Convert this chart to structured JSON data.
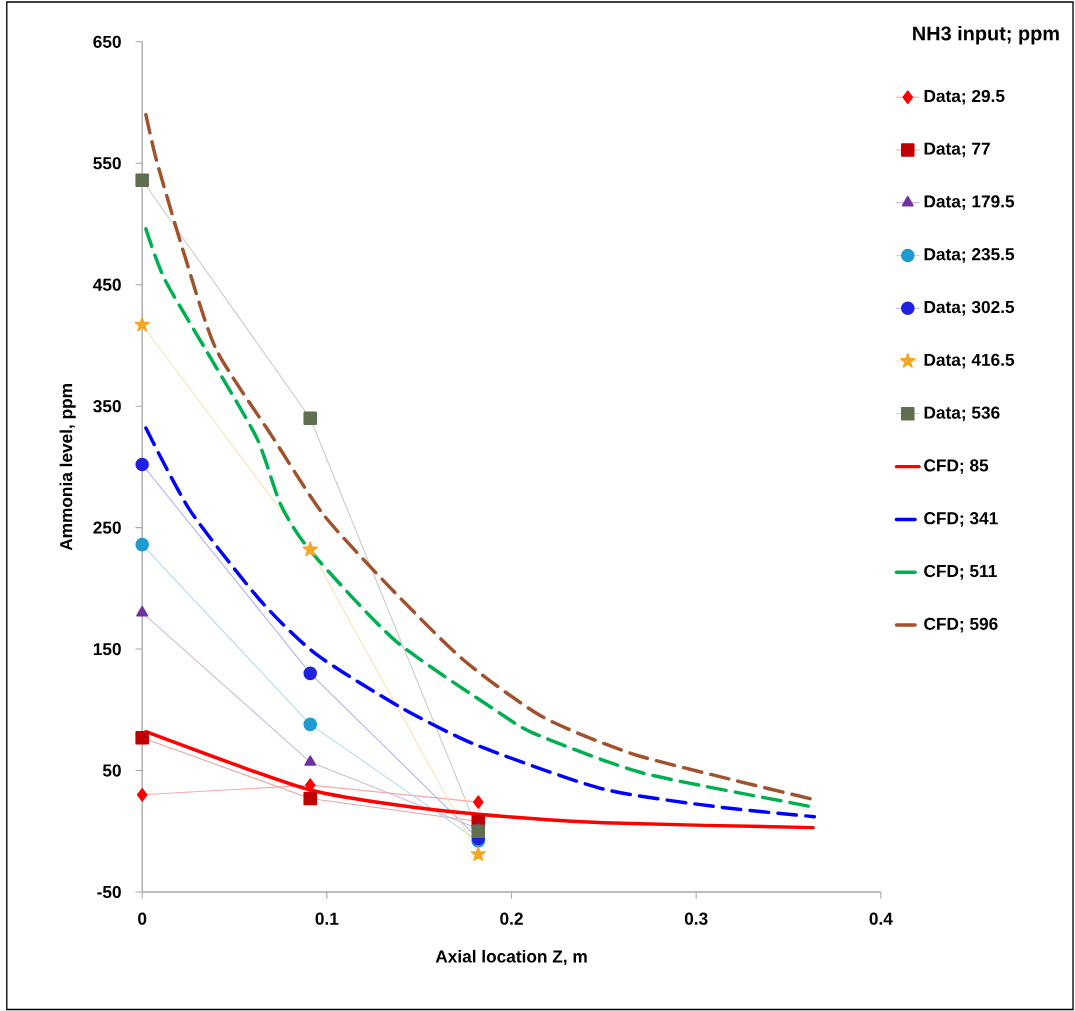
{
  "chart_data": {
    "type": "line",
    "xlabel": "Axial location Z, m",
    "ylabel": "Ammonia level, ppm",
    "legend_title": "NH3 input; ppm",
    "xlim": [
      0,
      0.4
    ],
    "xticks": [
      0,
      0.1,
      0.2,
      0.3,
      0.4
    ],
    "ylim": [
      -50,
      650
    ],
    "yticks": [
      -50,
      50,
      150,
      250,
      350,
      450,
      550,
      650
    ],
    "legend": "right",
    "grid": false,
    "series": [
      {
        "name": "Data; 29.5",
        "color": "#ff0000",
        "marker": "diamond",
        "line_style": "solid",
        "x": [
          0,
          0.091,
          0.182
        ],
        "values": [
          30,
          38,
          24
        ]
      },
      {
        "name": "Data; 77",
        "color": "#c00000",
        "marker": "square",
        "line_style": "solid",
        "x": [
          0,
          0.091,
          0.182
        ],
        "values": [
          77,
          27,
          8
        ]
      },
      {
        "name": "Data; 179.5",
        "color": "#7030a0",
        "marker": "triangle",
        "line_style": "solid",
        "x": [
          0,
          0.091,
          0.182
        ],
        "values": [
          180,
          57,
          2
        ]
      },
      {
        "name": "Data; 235.5",
        "color": "#1f9bcf",
        "marker": "circle",
        "line_style": "solid",
        "x": [
          0,
          0.091,
          0.182
        ],
        "values": [
          236,
          88,
          -8
        ]
      },
      {
        "name": "Data; 302.5",
        "color": "#2020e0",
        "marker": "circle",
        "line_style": "solid",
        "x": [
          0,
          0.091,
          0.182
        ],
        "values": [
          302,
          130,
          -6
        ]
      },
      {
        "name": "Data; 416.5",
        "color": "#f5a623",
        "marker": "star",
        "line_style": "solid",
        "x": [
          0,
          0.091,
          0.182
        ],
        "values": [
          417,
          232,
          -19
        ]
      },
      {
        "name": "Data; 536",
        "color": "#5f6f4f",
        "marker": "square",
        "line_style": "solid",
        "x": [
          0,
          0.091,
          0.182
        ],
        "values": [
          536,
          340,
          0
        ]
      },
      {
        "name": "CFD; 85",
        "color": "#ff0000",
        "marker": "none",
        "line_style": "solid",
        "x": [
          0.002,
          0.05,
          0.091,
          0.136,
          0.182,
          0.25,
          0.3633
        ],
        "values": [
          82,
          55,
          34,
          22,
          14,
          7,
          3
        ]
      },
      {
        "name": "CFD; 341",
        "color": "#0000ff",
        "marker": "none",
        "line_style": "dashed",
        "x": [
          0.002,
          0.026,
          0.064,
          0.094,
          0.14,
          0.181,
          0.249,
          0.312,
          0.364
        ],
        "values": [
          332,
          264,
          190,
          146,
          102,
          71,
          35,
          20,
          12
        ]
      },
      {
        "name": "CFD; 511",
        "color": "#00b050",
        "marker": "none",
        "line_style": "dashed",
        "x": [
          0.002,
          0.012,
          0.035,
          0.062,
          0.075,
          0.091,
          0.137,
          0.191,
          0.213,
          0.271,
          0.353,
          0.363
        ],
        "values": [
          496,
          455,
          395,
          324,
          269,
          231,
          157,
          100,
          80,
          48,
          23,
          20
        ]
      },
      {
        "name": "CFD; 596",
        "color": "#a0522d",
        "marker": "none",
        "line_style": "dashed",
        "x": [
          0.002,
          0.008,
          0.023,
          0.04,
          0.07,
          0.098,
          0.134,
          0.174,
          0.217,
          0.265,
          0.318,
          0.364
        ],
        "values": [
          590,
          551,
          474,
          397,
          326,
          261,
          201,
          141,
          94,
          64,
          43,
          26
        ]
      }
    ]
  }
}
